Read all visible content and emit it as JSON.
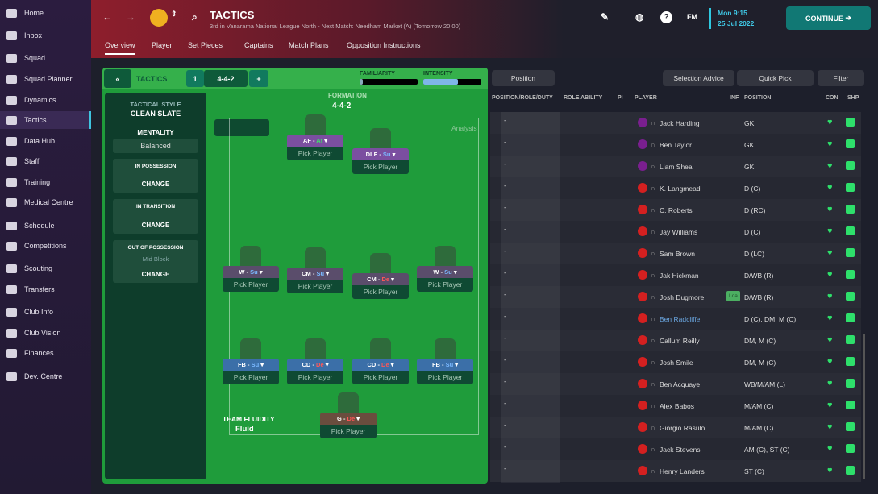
{
  "sidebar": {
    "items": [
      {
        "label": "Home"
      },
      {
        "label": "Inbox"
      },
      {
        "label": "Squad"
      },
      {
        "label": "Squad Planner"
      },
      {
        "label": "Dynamics"
      },
      {
        "label": "Tactics",
        "active": true
      },
      {
        "label": "Data Hub"
      },
      {
        "label": "Staff"
      },
      {
        "label": "Training"
      },
      {
        "label": "Medical Centre"
      },
      {
        "label": "Schedule"
      },
      {
        "label": "Competitions"
      },
      {
        "label": "Scouting"
      },
      {
        "label": "Transfers"
      },
      {
        "label": "Club Info"
      },
      {
        "label": "Club Vision"
      },
      {
        "label": "Finances"
      },
      {
        "label": "Dev. Centre"
      }
    ]
  },
  "header": {
    "title": "TACTICS",
    "subtitle": "3rd in Vanarama National League North - Next Match: Needham Market (A) (Tomorrow 20:00)",
    "tabs": [
      "Overview",
      "Player",
      "Set Pieces",
      "Captains",
      "Match Plans",
      "Opposition Instructions"
    ],
    "active_tab": "Overview",
    "fm_label": "FM",
    "date_time": "Mon 9:15",
    "date": "25 Jul 2022",
    "continue_label": "CONTINUE"
  },
  "tactics_bar": {
    "label": "TACTICS",
    "slot": "1",
    "formation": "4-4-2",
    "familiarity_label": "FAMILIARITY",
    "intensity_label": "INTENSITY",
    "familiarity": 0.05,
    "intensity": 0.6
  },
  "style_panel": {
    "tactical_style_label": "TACTICAL STYLE",
    "tactical_style": "CLEAN SLATE",
    "mentality_label": "MENTALITY",
    "mentality": "Balanced",
    "in_possession": "IN POSSESSION",
    "in_transition": "IN TRANSITION",
    "out_of_possession": "OUT OF POSSESSION",
    "oop_value": "Mid Block",
    "change": "CHANGE",
    "fluidity_label": "TEAM FLUIDITY",
    "fluidity": "Fluid"
  },
  "pitch": {
    "formation_label": "FORMATION",
    "formation": "4-4-2",
    "analysis": "Analysis",
    "pick": "Pick Player",
    "slots": [
      {
        "role": "AF",
        "duty": "At",
        "style": "pur",
        "d": "dA"
      },
      {
        "role": "DLF",
        "duty": "Su",
        "style": "pur",
        "d": "dS"
      },
      {
        "role": "W",
        "duty": "Su",
        "style": "",
        "d": "dS"
      },
      {
        "role": "CM",
        "duty": "Su",
        "style": "",
        "d": "dS"
      },
      {
        "role": "CM",
        "duty": "De",
        "style": "",
        "d": "dD"
      },
      {
        "role": "W",
        "duty": "Su",
        "style": "",
        "d": "dS"
      },
      {
        "role": "FB",
        "duty": "Su",
        "style": "blu",
        "d": "dS"
      },
      {
        "role": "CD",
        "duty": "De",
        "style": "blu",
        "d": "dD"
      },
      {
        "role": "CD",
        "duty": "De",
        "style": "blu",
        "d": "dD"
      },
      {
        "role": "FB",
        "duty": "Su",
        "style": "blu",
        "d": "dS"
      },
      {
        "role": "G",
        "duty": "De",
        "style": "brn",
        "d": "dD"
      }
    ]
  },
  "list": {
    "position_btn": "Position",
    "selection_advice": "Selection Advice",
    "quick_pick": "Quick Pick",
    "filter": "Filter",
    "headers": [
      "POSITION/ROLE/DUTY",
      "ROLE ABILITY",
      "PI",
      "PLAYER",
      "INF",
      "POSITION",
      "CON",
      "SHP"
    ],
    "rows": [
      {
        "dash": "-",
        "name": "Jack Harding",
        "pos": "GK",
        "shirt": "#7a1f8f"
      },
      {
        "dash": "-",
        "name": "Ben Taylor",
        "pos": "GK",
        "shirt": "#7a1f8f"
      },
      {
        "dash": "-",
        "name": "Liam Shea",
        "pos": "GK",
        "shirt": "#7a1f8f"
      },
      {
        "dash": "-",
        "name": "K. Langmead",
        "pos": "D (C)",
        "shirt": "#d42020"
      },
      {
        "dash": "-",
        "name": "C. Roberts",
        "pos": "D (RC)",
        "shirt": "#d42020"
      },
      {
        "dash": "-",
        "name": "Jay Williams",
        "pos": "D (C)",
        "shirt": "#d42020"
      },
      {
        "dash": "-",
        "name": "Sam Brown",
        "pos": "D (LC)",
        "shirt": "#d42020"
      },
      {
        "dash": "-",
        "name": "Jak Hickman",
        "pos": "D/WB (R)",
        "shirt": "#d42020"
      },
      {
        "dash": "-",
        "name": "Josh Dugmore",
        "pos": "D/WB (R)",
        "shirt": "#d42020",
        "inf": "Loa"
      },
      {
        "dash": "-",
        "name": "Ben Radcliffe",
        "pos": "D (C), DM, M (C)",
        "shirt": "#d42020",
        "highlight": true
      },
      {
        "dash": "-",
        "name": "Callum Reilly",
        "pos": "DM, M (C)",
        "shirt": "#d42020"
      },
      {
        "dash": "-",
        "name": "Josh Smile",
        "pos": "DM, M (C)",
        "shirt": "#d42020"
      },
      {
        "dash": "-",
        "name": "Ben Acquaye",
        "pos": "WB/M/AM (L)",
        "shirt": "#d42020"
      },
      {
        "dash": "-",
        "name": "Alex Babos",
        "pos": "M/AM (C)",
        "shirt": "#d42020"
      },
      {
        "dash": "-",
        "name": "Giorgio Rasulo",
        "pos": "M/AM (C)",
        "shirt": "#d42020"
      },
      {
        "dash": "-",
        "name": "Jack Stevens",
        "pos": "AM (C), ST (C)",
        "shirt": "#d42020"
      },
      {
        "dash": "-",
        "name": "Henry Landers",
        "pos": "ST (C)",
        "shirt": "#d42020"
      }
    ]
  }
}
